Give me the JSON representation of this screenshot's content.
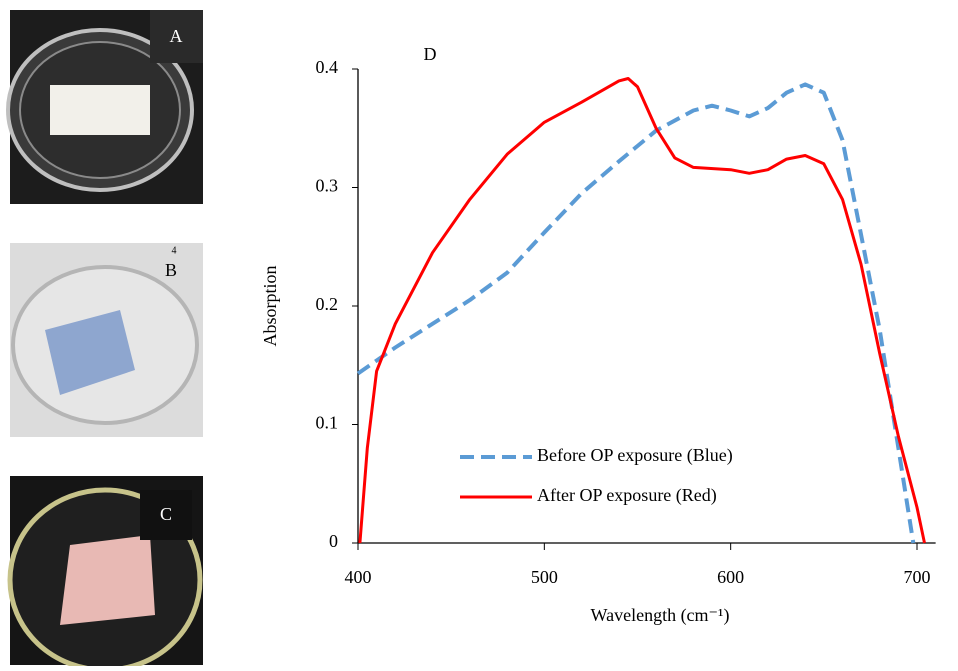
{
  "panels": [
    {
      "label": "A"
    },
    {
      "label": "B",
      "note": "4"
    },
    {
      "label": "C"
    }
  ],
  "chart_data": {
    "type": "line",
    "panel_label": "D",
    "x_label": "Wavelength (cm⁻¹)",
    "y_label": "Absorption",
    "xlim": [
      400,
      710
    ],
    "xticks": [
      400,
      500,
      600,
      700
    ],
    "ylim": [
      0,
      0.4
    ],
    "yticks": [
      0,
      0.1,
      0.2,
      0.3,
      0.4
    ],
    "legend": "bottom-left",
    "series": [
      {
        "name": "Before OP exposure (Blue)",
        "color": "#5b9bd5",
        "dashed": true,
        "x": [
          400,
          420,
          440,
          460,
          480,
          500,
          520,
          540,
          560,
          580,
          590,
          600,
          610,
          620,
          630,
          640,
          650,
          660,
          670,
          680,
          690,
          698
        ],
        "values": [
          0.143,
          0.165,
          0.185,
          0.205,
          0.228,
          0.262,
          0.295,
          0.322,
          0.348,
          0.365,
          0.369,
          0.365,
          0.36,
          0.367,
          0.38,
          0.387,
          0.38,
          0.34,
          0.26,
          0.18,
          0.08,
          0
        ]
      },
      {
        "name": "After OP exposure (Red)",
        "color": "#ff0000",
        "dashed": false,
        "x": [
          401,
          405,
          410,
          420,
          440,
          460,
          480,
          500,
          520,
          540,
          545,
          550,
          560,
          570,
          580,
          600,
          610,
          620,
          630,
          640,
          650,
          660,
          670,
          680,
          690,
          700,
          704
        ],
        "values": [
          0,
          0.08,
          0.145,
          0.185,
          0.245,
          0.29,
          0.328,
          0.355,
          0.372,
          0.39,
          0.392,
          0.385,
          0.35,
          0.325,
          0.317,
          0.315,
          0.312,
          0.315,
          0.324,
          0.327,
          0.32,
          0.29,
          0.235,
          0.16,
          0.09,
          0.03,
          0
        ]
      }
    ]
  }
}
